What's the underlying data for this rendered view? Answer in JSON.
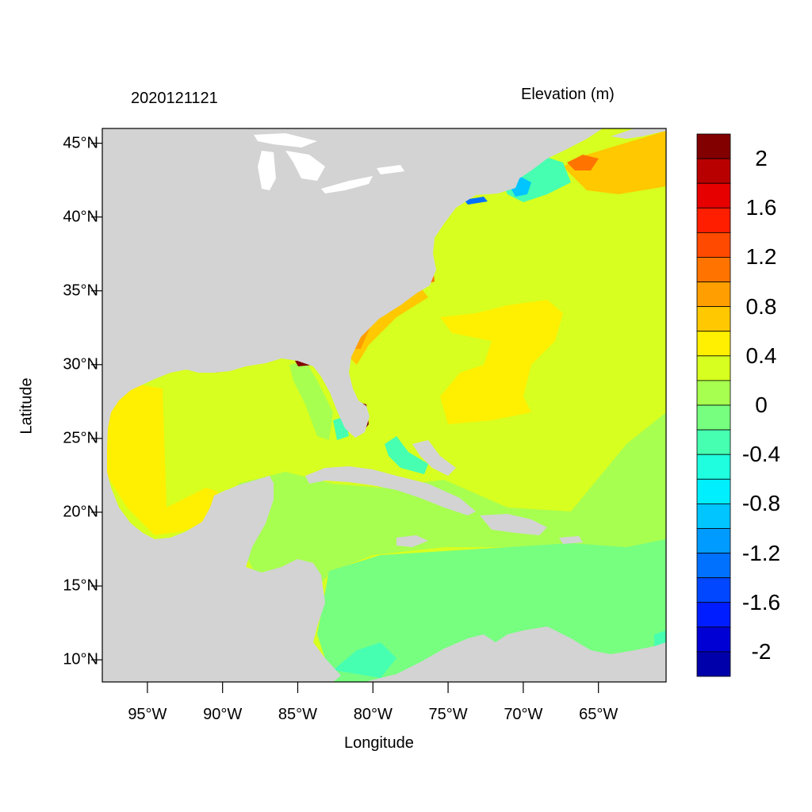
{
  "titles": {
    "left": "2020121121",
    "right": "Elevation (m)"
  },
  "axes": {
    "xlabel": "Longitude",
    "ylabel": "Latitude",
    "xlim_deg": [
      -98,
      -60.5
    ],
    "ylim_deg": [
      8.5,
      46
    ],
    "xticks": [
      {
        "value": -95,
        "label": "95°W"
      },
      {
        "value": -90,
        "label": "90°W"
      },
      {
        "value": -85,
        "label": "85°W"
      },
      {
        "value": -80,
        "label": "80°W"
      },
      {
        "value": -75,
        "label": "75°W"
      },
      {
        "value": -70,
        "label": "70°W"
      },
      {
        "value": -65,
        "label": "65°W"
      }
    ],
    "yticks": [
      {
        "value": 45,
        "label": "45°N"
      },
      {
        "value": 40,
        "label": "40°N"
      },
      {
        "value": 35,
        "label": "35°N"
      },
      {
        "value": 30,
        "label": "30°N"
      },
      {
        "value": 25,
        "label": "25°N"
      },
      {
        "value": 20,
        "label": "20°N"
      },
      {
        "value": 15,
        "label": "15°N"
      },
      {
        "value": 10,
        "label": "10°N"
      }
    ]
  },
  "colorbar": {
    "colors": [
      "#820000",
      "#b90000",
      "#e60000",
      "#ff1e00",
      "#ff4a00",
      "#ff7400",
      "#ff9e00",
      "#ffc800",
      "#ffef00",
      "#d7ff20",
      "#a7ff50",
      "#77ff80",
      "#47ffb0",
      "#1fffdf",
      "#00efff",
      "#00c5ff",
      "#009bff",
      "#0071ff",
      "#0047ff",
      "#001dff",
      "#0000d5",
      "#0000aa"
    ],
    "labels": [
      "2",
      "1.6",
      "1.2",
      "0.8",
      "0.4",
      "0",
      "-0.4",
      "-0.8",
      "-1.2",
      "-1.6",
      "-2"
    ]
  },
  "colors": {
    "land": "#d3d3d3",
    "water_default": "#d7ff20",
    "frame": "#000000"
  }
}
